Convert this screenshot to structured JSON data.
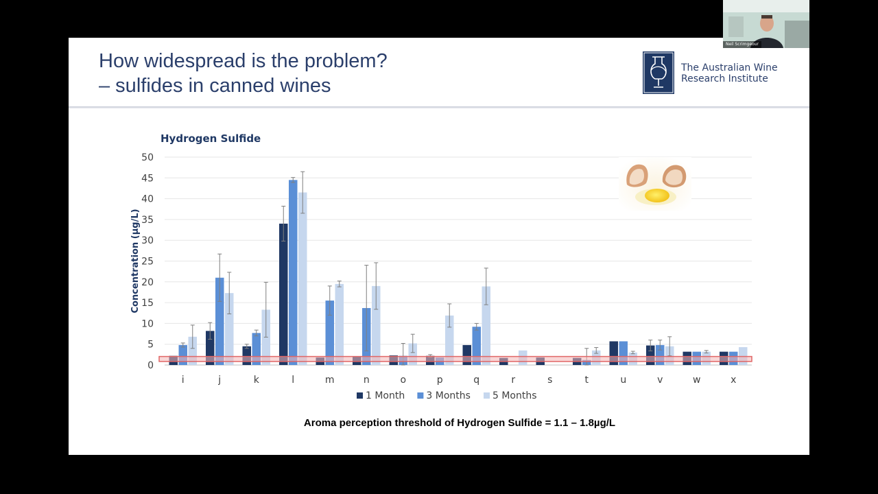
{
  "slide": {
    "title_line1": "How widespread is the problem?",
    "title_line2": "– sulfides in canned wines",
    "logo": {
      "icon": "wine-glass-logo-icon",
      "line1": "The Australian Wine",
      "line2": "Research Institute"
    },
    "threshold_note": "Aroma perception threshold of Hydrogen Sulfide = 1.1 – 1.8µg/L",
    "decoration_icon": "cracked-egg-icon"
  },
  "webcam": {
    "name": "Neil Scrimgeour"
  },
  "chart_data": {
    "type": "bar",
    "title": "Hydrogen Sulfide",
    "xlabel": "",
    "ylabel": "Concentration (µg/L)",
    "ylim": [
      0,
      50
    ],
    "yticks": [
      "0",
      "5",
      "10",
      "15",
      "20",
      "25",
      "30",
      "35",
      "40",
      "45",
      "50"
    ],
    "grid": true,
    "legend_position": "bottom",
    "categories": [
      "i",
      "j",
      "k",
      "l",
      "m",
      "n",
      "o",
      "p",
      "q",
      "r",
      "s",
      "t",
      "u",
      "v",
      "w",
      "x"
    ],
    "series": [
      {
        "name": "1 Month",
        "color": "#1f3864",
        "values": [
          2.2,
          8.2,
          4.5,
          34,
          1.8,
          2,
          2.3,
          2.2,
          4.8,
          1.7,
          1.8,
          1.7,
          5.7,
          4.7,
          3.2,
          3.2
        ],
        "errors": [
          0,
          2.0,
          0.5,
          4.2,
          0,
          0,
          0,
          0.3,
          0,
          0,
          0,
          0,
          0,
          1.3,
          0,
          0
        ]
      },
      {
        "name": "3 Months",
        "color": "#5b8fd6",
        "values": [
          4.8,
          21,
          7.7,
          44.5,
          15.5,
          13.7,
          2.2,
          1.8,
          9.2,
          null,
          null,
          1.2,
          5.7,
          4.8,
          3.2,
          3.2
        ],
        "errors": [
          0.5,
          5.7,
          0.7,
          0.6,
          3.5,
          10.3,
          3.0,
          0,
          0.8,
          0,
          0,
          2.8,
          0,
          1.2,
          0,
          0
        ]
      },
      {
        "name": "5 Months",
        "color": "#c6d7ee",
        "values": [
          6.8,
          17.3,
          13.3,
          41.5,
          19.5,
          19,
          5.2,
          11.9,
          18.9,
          3.5,
          null,
          3.5,
          3,
          4.5,
          3.2,
          4.3
        ],
        "errors": [
          2.8,
          5.0,
          6.6,
          5.0,
          0.7,
          5.6,
          2.2,
          2.8,
          4.4,
          0,
          0,
          0.7,
          0.3,
          2.3,
          0.3,
          0
        ]
      }
    ],
    "threshold_band": [
      1.1,
      1.8
    ],
    "threshold_color": "#e06666"
  }
}
